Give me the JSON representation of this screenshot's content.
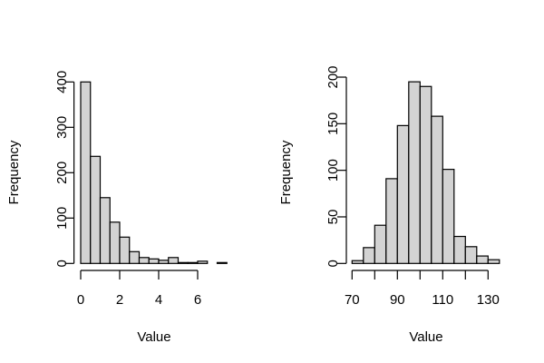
{
  "chart_data": [
    {
      "type": "bar",
      "subtype": "histogram",
      "title": "",
      "xlabel": "Value",
      "ylabel": "Frequency",
      "bin_edges": [
        0,
        0.5,
        1,
        1.5,
        2,
        2.5,
        3,
        3.5,
        4,
        4.5,
        5,
        5.5,
        6,
        6.5,
        7,
        7.5
      ],
      "values": [
        400,
        236,
        145,
        91,
        58,
        26,
        13,
        10,
        7,
        13,
        2,
        2,
        5,
        0,
        2
      ],
      "xticks": [
        0,
        2,
        4,
        6
      ],
      "xtick_labels": [
        "0",
        "2",
        "4",
        "6"
      ],
      "yticks": [
        0,
        100,
        200,
        300,
        400
      ],
      "ytick_labels": [
        "0",
        "100",
        "200",
        "300",
        "400"
      ],
      "xlim": [
        0,
        7.5
      ],
      "ylim": [
        0,
        400
      ],
      "bar_color": "#d3d3d3"
    },
    {
      "type": "bar",
      "subtype": "histogram",
      "title": "",
      "xlabel": "Value",
      "ylabel": "Frequency",
      "bin_edges": [
        70,
        75,
        80,
        85,
        90,
        95,
        100,
        105,
        110,
        115,
        120,
        125,
        130,
        135
      ],
      "values": [
        3,
        17,
        41,
        91,
        148,
        195,
        190,
        158,
        101,
        29,
        18,
        8,
        4
      ],
      "xticks": [
        70,
        80,
        90,
        100,
        110,
        120,
        130
      ],
      "xtick_labels": [
        "70",
        "",
        "90",
        "",
        "110",
        "",
        "130"
      ],
      "yticks": [
        0,
        50,
        100,
        150,
        200
      ],
      "ytick_labels": [
        "0",
        "50",
        "100",
        "150",
        "200"
      ],
      "xlim": [
        70,
        135
      ],
      "ylim": [
        0,
        200
      ],
      "bar_color": "#d3d3d3"
    }
  ]
}
